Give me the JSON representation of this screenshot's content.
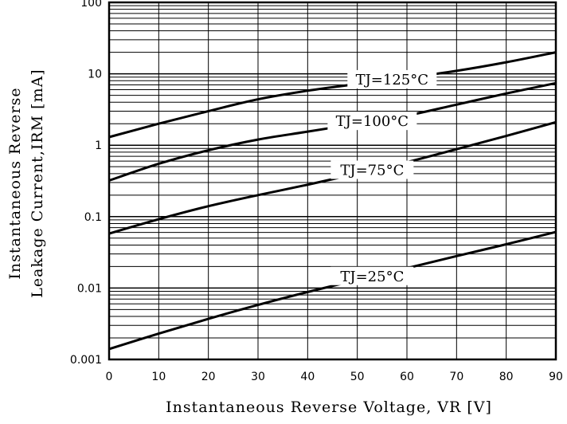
{
  "chart_data": {
    "type": "line",
    "title": "",
    "xlabel": "Instantaneous Reverse Voltage, VR [V]",
    "ylabel_line1": "Instantaneous Reverse",
    "ylabel_line2": "Leakage Current,IRM [mA]",
    "x_scale": "linear",
    "y_scale": "log",
    "xlim": [
      0,
      90
    ],
    "ylim": [
      0.001,
      100
    ],
    "grid": true,
    "x_ticks": [
      "0",
      "10",
      "20",
      "30",
      "40",
      "50",
      "60",
      "70",
      "80",
      "90"
    ],
    "y_ticks": [
      "0.001",
      "0.01",
      "0.1",
      "1",
      "10",
      "100"
    ],
    "series": [
      {
        "name": "TJ=125°C",
        "x": [
          0,
          10,
          20,
          30,
          40,
          50,
          60,
          70,
          80,
          90
        ],
        "values": [
          1.3,
          2.0,
          3.0,
          4.4,
          5.8,
          7.2,
          8.8,
          11.0,
          14.5,
          20.0
        ]
      },
      {
        "name": "TJ=100°C",
        "x": [
          0,
          10,
          20,
          30,
          40,
          50,
          60,
          70,
          80,
          90
        ],
        "values": [
          0.32,
          0.55,
          0.85,
          1.2,
          1.55,
          2.0,
          2.6,
          3.7,
          5.3,
          7.4
        ]
      },
      {
        "name": "TJ=75°C",
        "x": [
          0,
          10,
          20,
          30,
          40,
          50,
          60,
          70,
          80,
          90
        ],
        "values": [
          0.058,
          0.092,
          0.14,
          0.2,
          0.28,
          0.4,
          0.58,
          0.88,
          1.35,
          2.1
        ]
      },
      {
        "name": "TJ=25°C",
        "x": [
          0,
          10,
          20,
          30,
          40,
          50,
          60,
          70,
          80,
          90
        ],
        "values": [
          0.0014,
          0.0023,
          0.0037,
          0.0058,
          0.0088,
          0.013,
          0.019,
          0.028,
          0.041,
          0.061
        ]
      }
    ]
  }
}
